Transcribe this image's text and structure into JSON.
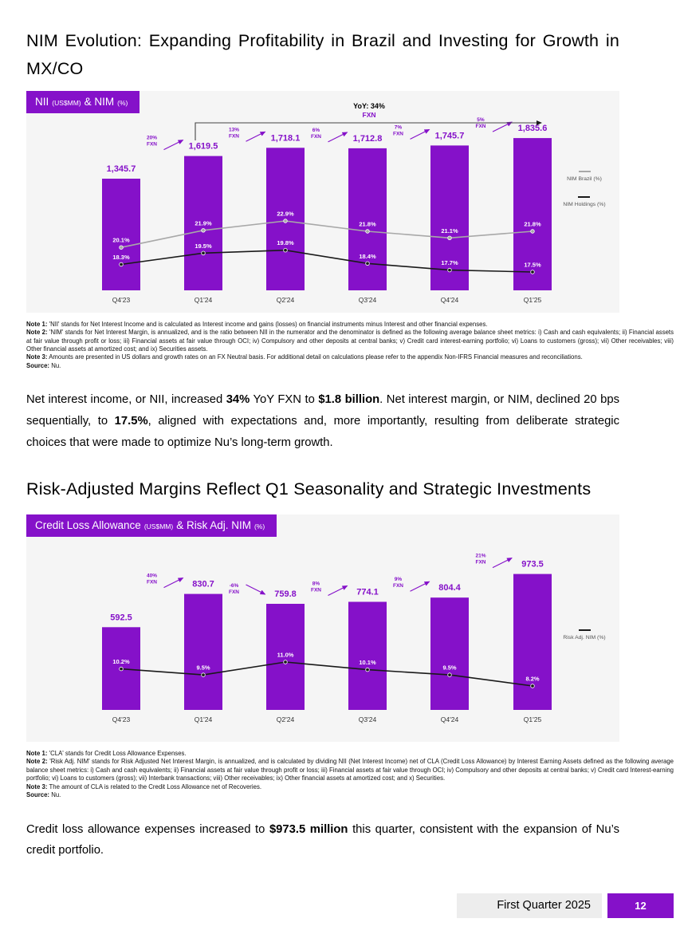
{
  "colors": {
    "purple": "#8511C9",
    "line_gray": "#a8a8a8",
    "line_black": "#1a1a1a",
    "chart_bg": "#f5f5f5",
    "footer_gray": "#ededed"
  },
  "sections": {
    "nim": {
      "heading": "NIM Evolution: Expanding Profitability in Brazil and Investing for Growth in MX/CO",
      "badge": {
        "p1": "NII",
        "p2": "(US$MM)",
        "p3": "& NIM",
        "p4": "(%)"
      },
      "notes": [
        {
          "label": "Note 1:",
          "text": "'NII' stands for Net Interest Income and is calculated as Interest income and gains (losses) on financial instruments minus Interest and other financial expenses."
        },
        {
          "label": "Note 2:",
          "text": "'NIM' stands for Net Interest Margin, is annualized, and is the ratio between NII in the numerator and the denominator is defined as the following average balance sheet metrics: i) Cash and cash equivalents; ii) Financial assets at fair value through profit or loss; iii) Financial assets at fair value through OCI; iv) Compulsory and other deposits at central banks; v) Credit card interest-earning portfolio; vi) Loans to customers (gross); vii) Other receivables; viii) Other financial assets at amortized cost; and ix) Securities assets."
        },
        {
          "label": "Note 3:",
          "text": "Amounts are presented in US dollars and growth rates on an FX Neutral basis. For additional detail on calculations please refer to the appendix Non-IFRS Financial measures and reconciliations."
        },
        {
          "label": "Source:",
          "text": "Nu."
        }
      ],
      "paragraph": {
        "s1": "Net interest income, or NII, increased ",
        "b1": "34%",
        "s2": " YoY FXN to ",
        "b2": "$1.8 billion",
        "s3": ". Net interest margin, or NIM, declined 20 bps sequentially, to ",
        "b3": "17.5%",
        "s4": ", aligned with expectations and, more importantly, resulting from deliberate strategic choices that were made to optimize Nu’s long-term growth."
      }
    },
    "risk": {
      "heading": "Risk-Adjusted Margins Reflect Q1 Seasonality and Strategic Investments",
      "badge": {
        "p1": "Credit Loss Allowance",
        "p2": "(US$MM)",
        "p3": "& Risk Adj. NIM",
        "p4": "(%)"
      },
      "notes": [
        {
          "label": "Note 1:",
          "text": "'CLA' stands for Credit Loss Allowance Expenses."
        },
        {
          "label": "Note 2:",
          "text": "'Risk Adj. NIM' stands for Risk Adjusted Net Interest Margin, is annualized, and is calculated by dividing NII (Net Interest Income) net of CLA (Credit Loss Allowance) by Interest Earning Assets defined as the following average balance sheet metrics: i) Cash and cash equivalents; ii) Financial assets at fair value through profit or loss; iii) Financial assets at fair value through OCI; iv) Compulsory and other deposits at central banks; v) Credit card Interest-earning portfolio; vi) Loans to customers (gross); vii) Interbank transactions; viii) Other receivables; ix) Other financial assets at amortized cost; and x) Securities."
        },
        {
          "label": "Note 3:",
          "text": "The amount of CLA is related to the Credit Loss Allowance net of Recoveries."
        },
        {
          "label": "Source:",
          "text": "Nu."
        }
      ],
      "paragraph": {
        "s1": "Credit loss allowance expenses increased to ",
        "b1": "$973.5 million",
        "s2": " this quarter, consistent with the expansion of Nu’s credit portfolio."
      }
    }
  },
  "footer": {
    "label": "First Quarter 2025",
    "page": "12"
  },
  "chart_data": [
    {
      "type": "bar+line",
      "title": "NII (US$MM) & NIM (%)",
      "categories": [
        "Q4'23",
        "Q1'24",
        "Q2'24",
        "Q3'24",
        "Q4'24",
        "Q1'25"
      ],
      "bars": {
        "name": "NII (US$MM)",
        "values": [
          1345.7,
          1619.5,
          1718.1,
          1712.8,
          1745.7,
          1835.6
        ],
        "labels": [
          "1,345.7",
          "1,619.5",
          "1,718.1",
          "1,712.8",
          "1,745.7",
          "1,835.6"
        ]
      },
      "growth_fxn": [
        "20%",
        "13%",
        "6%",
        "7%",
        "5%"
      ],
      "fxn_suffix": "FXN",
      "yoy": {
        "label": "YoY: 34%",
        "sub": "FXN"
      },
      "lines": [
        {
          "name": "NIM Brazil (%)",
          "color": "#a8a8a8",
          "values": [
            20.1,
            21.9,
            22.9,
            21.8,
            21.1,
            21.8
          ],
          "labels": [
            "20.1%",
            "21.9%",
            "22.9%",
            "21.8%",
            "21.1%",
            "21.8%"
          ]
        },
        {
          "name": "NIM Holdings (%)",
          "color": "#1a1a1a",
          "values": [
            18.3,
            19.5,
            19.8,
            18.4,
            17.7,
            17.5
          ],
          "labels": [
            "18.3%",
            "19.5%",
            "19.8%",
            "18.4%",
            "17.7%",
            "17.5%"
          ]
        }
      ],
      "legend_position": "right"
    },
    {
      "type": "bar+line",
      "title": "Credit Loss Allowance (US$MM) & Risk Adj. NIM (%)",
      "categories": [
        "Q4'23",
        "Q1'24",
        "Q2'24",
        "Q3'24",
        "Q4'24",
        "Q1'25"
      ],
      "bars": {
        "name": "Credit Loss Allowance (US$MM)",
        "values": [
          592.5,
          830.7,
          759.8,
          774.1,
          804.4,
          973.5
        ],
        "labels": [
          "592.5",
          "830.7",
          "759.8",
          "774.1",
          "804.4",
          "973.5"
        ]
      },
      "growth_fxn": [
        "40%",
        "-6%",
        "8%",
        "9%",
        "21%"
      ],
      "fxn_suffix": "FXN",
      "lines": [
        {
          "name": "Risk Adj. NIM (%)",
          "color": "#1a1a1a",
          "values": [
            10.2,
            9.5,
            11.0,
            10.1,
            9.5,
            8.2
          ],
          "labels": [
            "10.2%",
            "9.5%",
            "11.0%",
            "10.1%",
            "9.5%",
            "8.2%"
          ]
        }
      ],
      "legend_position": "right"
    }
  ]
}
